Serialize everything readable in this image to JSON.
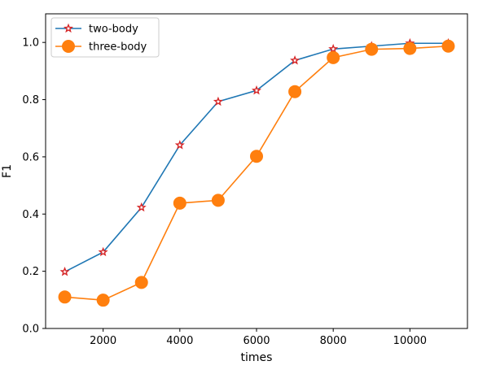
{
  "chart_data": {
    "type": "line",
    "title": "",
    "xlabel": "times",
    "ylabel": "F1",
    "xlim": [
      500,
      11500
    ],
    "ylim": [
      0,
      1.1
    ],
    "x_ticks": [
      2000,
      4000,
      6000,
      8000,
      10000
    ],
    "x_tick_labels": [
      "2000",
      "4000",
      "6000",
      "8000",
      "10000"
    ],
    "y_ticks": [
      0.0,
      0.2,
      0.4,
      0.6,
      0.8,
      1.0
    ],
    "y_tick_labels": [
      "0.0",
      "0.2",
      "0.4",
      "0.6",
      "0.8",
      "1.0"
    ],
    "grid": false,
    "legend_position": "top-left",
    "x": [
      1000,
      2000,
      3000,
      4000,
      5000,
      6000,
      7000,
      8000,
      9000,
      10000,
      11000
    ],
    "series": [
      {
        "name": "two-body",
        "values": [
          0.198,
          0.267,
          0.423,
          0.641,
          0.793,
          0.832,
          0.937,
          0.977,
          0.987,
          0.997,
          0.997
        ],
        "color": "#1f77b4",
        "marker": "star",
        "marker_color": "#d62728"
      },
      {
        "name": "three-body",
        "values": [
          0.11,
          0.099,
          0.161,
          0.438,
          0.448,
          0.602,
          0.828,
          0.947,
          0.976,
          0.979,
          0.987
        ],
        "color": "#ff7f0e",
        "marker": "circle",
        "marker_color": "#ff7f0e"
      }
    ]
  }
}
